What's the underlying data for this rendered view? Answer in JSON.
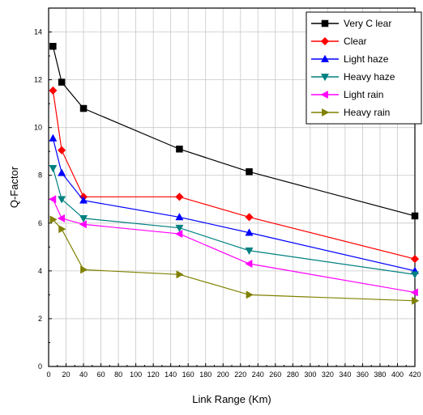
{
  "chart_data": {
    "type": "line",
    "xlabel": "Link Range (Km)",
    "ylabel": "Q-Factor",
    "xlim": [
      0,
      420
    ],
    "ylim": [
      0,
      15
    ],
    "xticks": [
      0,
      20,
      40,
      60,
      80,
      100,
      120,
      140,
      160,
      180,
      200,
      220,
      240,
      260,
      280,
      300,
      320,
      340,
      360,
      380,
      400,
      420
    ],
    "yticks": [
      0,
      2,
      4,
      6,
      8,
      10,
      12,
      14
    ],
    "grid": true,
    "legend_position": "top-right",
    "x": [
      5,
      15,
      40,
      150,
      230,
      420
    ],
    "series": [
      {
        "name": "Very C lear",
        "color": "#000000",
        "marker": "square",
        "values": [
          13.4,
          11.9,
          10.8,
          9.1,
          8.15,
          6.3
        ]
      },
      {
        "name": "Clear",
        "color": "#ff0000",
        "marker": "diamond",
        "values": [
          11.55,
          9.05,
          7.1,
          7.1,
          6.25,
          4.5
        ]
      },
      {
        "name": "Light haze",
        "color": "#0000ff",
        "marker": "triangle-up",
        "values": [
          9.55,
          8.1,
          6.95,
          6.25,
          5.6,
          4.0
        ]
      },
      {
        "name": "Heavy haze",
        "color": "#008080",
        "marker": "triangle-down",
        "values": [
          8.3,
          7.0,
          6.2,
          5.8,
          4.85,
          3.85
        ]
      },
      {
        "name": "Light rain",
        "color": "#ff00ff",
        "marker": "triangle-left",
        "values": [
          7.0,
          6.2,
          5.95,
          5.55,
          4.3,
          3.1
        ]
      },
      {
        "name": "Heavy rain",
        "color": "#808000",
        "marker": "triangle-right",
        "values": [
          6.15,
          5.75,
          4.05,
          3.85,
          3.0,
          2.75
        ]
      }
    ]
  }
}
